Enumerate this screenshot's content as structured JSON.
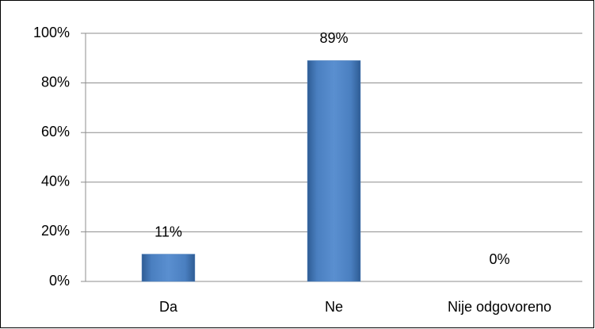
{
  "chart_data": {
    "type": "bar",
    "categories": [
      "Da",
      "Ne",
      "Nije odgovoreno"
    ],
    "values": [
      11,
      89,
      0
    ],
    "value_labels": [
      "11%",
      "89%",
      "0%"
    ],
    "color": "#4f81bd",
    "ylim": [
      0,
      100
    ],
    "yticks": [
      {
        "value": 0,
        "label": "0%"
      },
      {
        "value": 20,
        "label": "20%"
      },
      {
        "value": 40,
        "label": "40%"
      },
      {
        "value": 60,
        "label": "60%"
      },
      {
        "value": 80,
        "label": "80%"
      },
      {
        "value": 100,
        "label": "100%"
      }
    ],
    "grid": true
  }
}
